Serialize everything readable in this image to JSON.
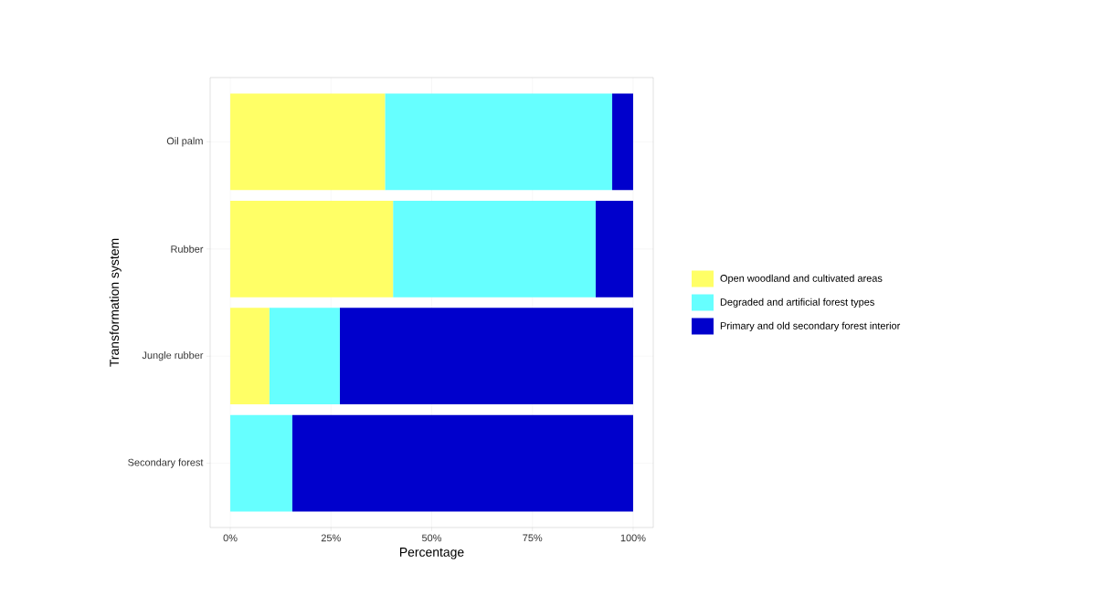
{
  "chart_data": {
    "type": "bar",
    "orientation": "horizontal",
    "stacked": true,
    "xlabel": "Percentage",
    "ylabel": "Transformation system",
    "categories": [
      "Oil palm",
      "Rubber",
      "Jungle rubber",
      "Secondary forest"
    ],
    "series": [
      {
        "name": "Open woodland and cultivated areas",
        "color": "#ffff66",
        "values": [
          38.4,
          40.4,
          9.7,
          0
        ]
      },
      {
        "name": "Degraded and artificial forest types",
        "color": "#66ffff",
        "values": [
          56.4,
          50.3,
          17.5,
          15.4
        ]
      },
      {
        "name": "Primary and old secondary forest interior",
        "color": "#0000cc",
        "values": [
          5.2,
          9.3,
          72.8,
          84.6
        ]
      }
    ],
    "xlim": [
      -5,
      105
    ],
    "xticks": [
      {
        "value": 0,
        "label": "0%"
      },
      {
        "value": 25,
        "label": "25%"
      },
      {
        "value": 50,
        "label": "50%"
      },
      {
        "value": 75,
        "label": "75%"
      },
      {
        "value": 100,
        "label": "100%"
      }
    ],
    "grid": true,
    "legend": "right"
  }
}
